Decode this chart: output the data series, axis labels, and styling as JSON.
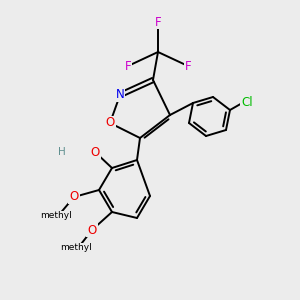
{
  "background_color": "#ececec",
  "bond_color": "#000000",
  "atom_colors": {
    "N": "#0000ee",
    "O": "#ee0000",
    "F": "#cc00cc",
    "Cl": "#00bb00",
    "H": "#5f8f8f",
    "C": "#000000"
  }
}
